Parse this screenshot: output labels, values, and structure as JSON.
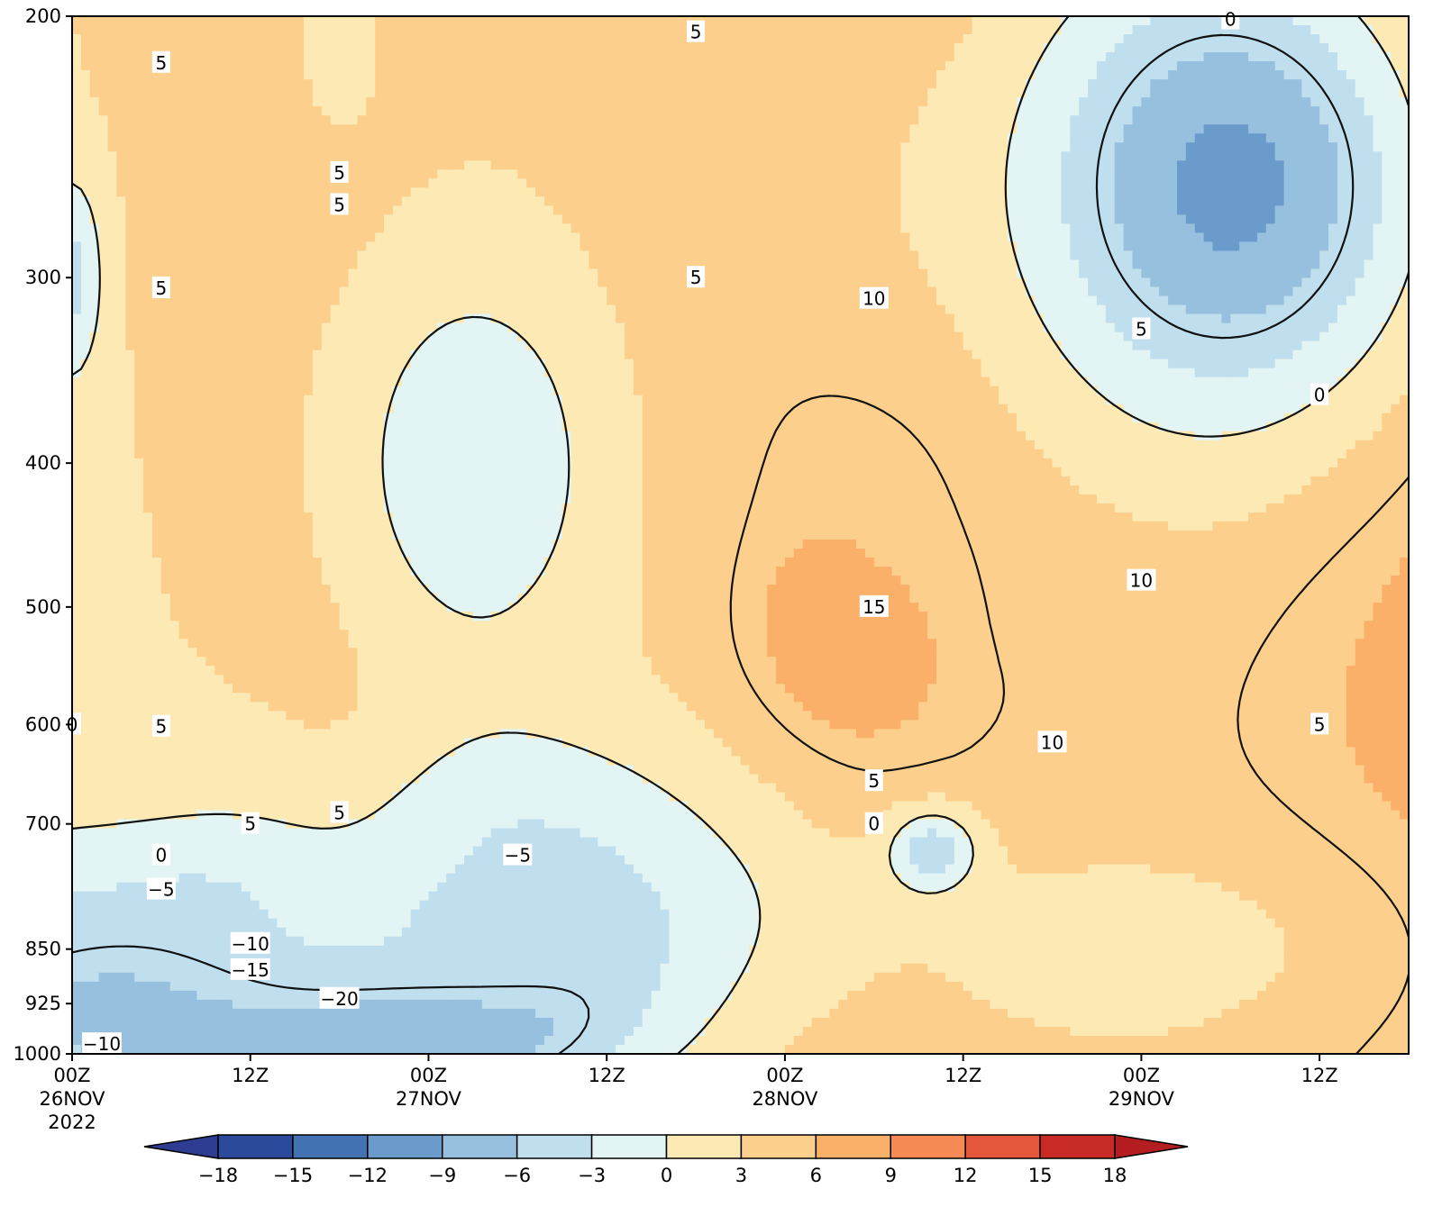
{
  "chart_data": {
    "type": "heatmap",
    "title": "",
    "xlabel": "",
    "ylabel": "",
    "y_axis": {
      "scale": "log-pressure",
      "inverted": true,
      "range": [
        1000,
        200
      ],
      "ticks": [
        "200",
        "300",
        "400",
        "500",
        "600",
        "700",
        "850",
        "925",
        "1000"
      ],
      "tick_values": [
        200,
        300,
        400,
        500,
        600,
        700,
        850,
        925,
        1000
      ]
    },
    "x_axis": {
      "range_hours": [
        0,
        90
      ],
      "ticks": [
        {
          "hour": 0,
          "lines": [
            "00Z",
            "26NOV",
            "2022"
          ]
        },
        {
          "hour": 12,
          "lines": [
            "12Z"
          ]
        },
        {
          "hour": 24,
          "lines": [
            "00Z",
            "27NOV"
          ]
        },
        {
          "hour": 36,
          "lines": [
            "12Z"
          ]
        },
        {
          "hour": 48,
          "lines": [
            "00Z",
            "28NOV"
          ]
        },
        {
          "hour": 60,
          "lines": [
            "12Z"
          ]
        },
        {
          "hour": 72,
          "lines": [
            "00Z",
            "29NOV"
          ]
        },
        {
          "hour": 84,
          "lines": [
            "12Z"
          ]
        }
      ]
    },
    "colorbar": {
      "levels": [
        -18,
        -15,
        -12,
        -9,
        -6,
        -3,
        0,
        3,
        6,
        9,
        12,
        15,
        18
      ],
      "labels": [
        "−18",
        "−15",
        "−12",
        "−9",
        "−6",
        "−3",
        "0",
        "3",
        "6",
        "9",
        "12",
        "15",
        "18"
      ],
      "colors": [
        "#2c4a9c",
        "#4473b3",
        "#6b9bcb",
        "#96c0de",
        "#bfdeee",
        "#e2f4f3",
        "#fde9b4",
        "#fcd08c",
        "#fbb06a",
        "#f68a55",
        "#e5573d",
        "#c82a26"
      ],
      "under_color": "#2e3c92",
      "over_color": "#b41e20",
      "extend": "both"
    },
    "grid": false,
    "legend": "colorbar-bottom",
    "features": [
      {
        "kind": "blob",
        "hour": 19,
        "p": 920,
        "rx_h": 15,
        "rx_p": 135,
        "value": -21
      },
      {
        "kind": "blob",
        "hour": 8,
        "p": 920,
        "rx_h": 18,
        "rx_p": 160,
        "value": -8
      },
      {
        "kind": "blob",
        "hour": 29,
        "p": 820,
        "rx_h": 11,
        "rx_p": 150,
        "value": -7
      },
      {
        "kind": "blob",
        "hour": 27,
        "p": 740,
        "rx_h": 17,
        "rx_p": 170,
        "value": -3
      },
      {
        "kind": "blob",
        "hour": 20,
        "p": 810,
        "rx_h": 24,
        "rx_p": 120,
        "value": -4
      },
      {
        "kind": "blob",
        "hour": 54,
        "p": 520,
        "rx_h": 7,
        "rx_p": 90,
        "value": 9
      },
      {
        "kind": "blob",
        "hour": 56,
        "p": 410,
        "rx_h": 7,
        "rx_p": 120,
        "value": 6
      },
      {
        "kind": "blob",
        "hour": 66,
        "p": 520,
        "rx_h": 10,
        "rx_p": 160,
        "value": 5
      },
      {
        "kind": "blob",
        "hour": 52,
        "p": 260,
        "rx_h": 16,
        "rx_p": 90,
        "value": 4
      },
      {
        "kind": "blob",
        "hour": 18,
        "p": 460,
        "rx_h": 7,
        "rx_p": 260,
        "value": 4
      },
      {
        "kind": "blob",
        "hour": 18,
        "p": 210,
        "rx_h": 3,
        "rx_p": 30,
        "value": 2
      },
      {
        "kind": "blob",
        "hour": 78,
        "p": 260,
        "rx_h": 14,
        "rx_p": 120,
        "value": -10
      },
      {
        "kind": "blob",
        "hour": 58,
        "p": 735,
        "rx_h": 3,
        "rx_p": 50,
        "value": -7
      },
      {
        "kind": "blob",
        "hour": 27,
        "p": 400,
        "rx_h": 8,
        "rx_p": 130,
        "value": -3
      },
      {
        "kind": "blob",
        "hour": 0,
        "p": 300,
        "rx_h": 2,
        "rx_p": 50,
        "value": -4
      },
      {
        "kind": "blob",
        "hour": 72,
        "p": 850,
        "rx_h": 16,
        "rx_p": 160,
        "value": 2
      }
    ],
    "contour_labels": [
      {
        "hour": 6,
        "p": 215,
        "text": "5"
      },
      {
        "hour": 18,
        "p": 255,
        "text": "5"
      },
      {
        "hour": 18,
        "p": 268,
        "text": "5"
      },
      {
        "hour": 6,
        "p": 305,
        "text": "5"
      },
      {
        "hour": 42,
        "p": 205,
        "text": "5"
      },
      {
        "hour": 42,
        "p": 300,
        "text": "5"
      },
      {
        "hour": 78,
        "p": 201,
        "text": "0"
      },
      {
        "hour": 84,
        "p": 360,
        "text": "0"
      },
      {
        "hour": 54,
        "p": 310,
        "text": "10"
      },
      {
        "hour": 72,
        "p": 325,
        "text": "5"
      },
      {
        "hour": 72,
        "p": 480,
        "text": "10"
      },
      {
        "hour": 54,
        "p": 500,
        "text": "15"
      },
      {
        "hour": 66,
        "p": 617,
        "text": "10"
      },
      {
        "hour": 84,
        "p": 600,
        "text": "5"
      },
      {
        "hour": 6,
        "p": 602,
        "text": "5"
      },
      {
        "hour": 0,
        "p": 600,
        "text": "0"
      },
      {
        "hour": 18,
        "p": 688,
        "text": "5"
      },
      {
        "hour": 12,
        "p": 700,
        "text": "5"
      },
      {
        "hour": 54,
        "p": 655,
        "text": "5"
      },
      {
        "hour": 54,
        "p": 700,
        "text": "0"
      },
      {
        "hour": 6,
        "p": 735,
        "text": "0"
      },
      {
        "hour": 6,
        "p": 775,
        "text": "−5"
      },
      {
        "hour": 30,
        "p": 735,
        "text": "−5"
      },
      {
        "hour": 12,
        "p": 843,
        "text": "−10"
      },
      {
        "hour": 12,
        "p": 878,
        "text": "−15"
      },
      {
        "hour": 18,
        "p": 918,
        "text": "−20"
      },
      {
        "hour": 2,
        "p": 985,
        "text": "−10"
      }
    ]
  }
}
